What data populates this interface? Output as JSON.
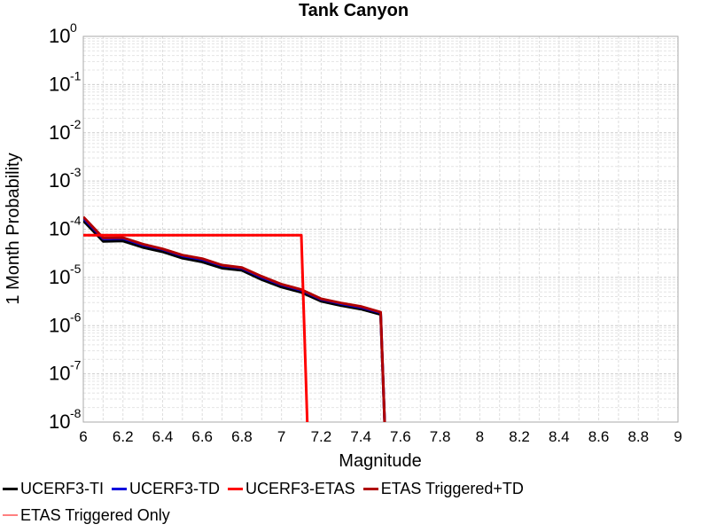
{
  "chart_data": {
    "type": "line",
    "title": "Tank Canyon",
    "xlabel": "Magnitude",
    "ylabel": "1 Month Probability",
    "xlim": [
      6,
      9
    ],
    "ylim": [
      1e-08,
      1
    ],
    "yscale": "log",
    "grid": true,
    "legend_placement": "bottom",
    "x_ticks": [
      "6",
      "6.2",
      "6.4",
      "6.6",
      "6.8",
      "7",
      "7.2",
      "7.4",
      "7.6",
      "7.8",
      "8",
      "8.2",
      "8.4",
      "8.6",
      "8.8",
      "9"
    ],
    "y_ticks": [
      {
        "base": "10",
        "exp": "0"
      },
      {
        "base": "10",
        "exp": "-1"
      },
      {
        "base": "10",
        "exp": "-2"
      },
      {
        "base": "10",
        "exp": "-3"
      },
      {
        "base": "10",
        "exp": "-4"
      },
      {
        "base": "10",
        "exp": "-5"
      },
      {
        "base": "10",
        "exp": "-6"
      },
      {
        "base": "10",
        "exp": "-7"
      },
      {
        "base": "10",
        "exp": "-8"
      }
    ],
    "series": [
      {
        "name": "UCERF3-TI",
        "color": "#000000",
        "width": 3,
        "x": [
          6.0,
          6.1,
          6.2,
          6.3,
          6.4,
          6.5,
          6.6,
          6.7,
          6.8,
          6.9,
          7.0,
          7.1,
          7.2,
          7.3,
          7.4,
          7.5,
          7.52
        ],
        "y": [
          0.00015,
          5.6e-05,
          5.7e-05,
          4.2e-05,
          3.4e-05,
          2.5e-05,
          2.1e-05,
          1.55e-05,
          1.4e-05,
          9e-06,
          6.3e-06,
          4.9e-06,
          3.2e-06,
          2.6e-06,
          2.2e-06,
          1.7e-06,
          1e-08
        ]
      },
      {
        "name": "UCERF3-TD",
        "color": "#0000dd",
        "width": 3,
        "x": [
          6.0,
          6.1,
          6.2,
          6.3,
          6.4,
          6.5,
          6.6,
          6.7,
          6.8,
          6.9,
          7.0,
          7.1,
          7.2,
          7.3,
          7.4,
          7.5,
          7.52
        ],
        "y": [
          0.00017,
          6.3e-05,
          6.4e-05,
          4.7e-05,
          3.8e-05,
          2.8e-05,
          2.35e-05,
          1.75e-05,
          1.55e-05,
          1e-05,
          7e-06,
          5.4e-06,
          3.5e-06,
          2.85e-06,
          2.4e-06,
          1.85e-06,
          1e-08
        ]
      },
      {
        "name": "UCERF3-ETAS",
        "color": "#ff0000",
        "width": 3,
        "x": [
          6.0,
          6.1,
          6.2,
          6.3,
          6.4,
          6.5,
          6.6,
          6.7,
          6.8,
          6.9,
          7.0,
          7.1,
          7.13
        ],
        "y": [
          7.5e-05,
          7.5e-05,
          7.5e-05,
          7.5e-05,
          7.5e-05,
          7.5e-05,
          7.5e-05,
          7.5e-05,
          7.5e-05,
          7.5e-05,
          7.5e-05,
          7.5e-05,
          1e-08
        ]
      },
      {
        "name": "ETAS Triggered+TD",
        "color": "#b00000",
        "width": 3,
        "x": [
          6.0,
          6.1,
          6.2,
          6.3,
          6.4,
          6.5,
          6.6,
          6.7,
          6.8,
          6.9,
          7.0,
          7.1,
          7.2,
          7.3,
          7.4,
          7.5,
          7.52
        ],
        "y": [
          0.00018,
          6.6e-05,
          6.7e-05,
          4.9e-05,
          3.9e-05,
          2.9e-05,
          2.45e-05,
          1.8e-05,
          1.6e-05,
          1.05e-05,
          7.2e-06,
          5.6e-06,
          3.6e-06,
          2.95e-06,
          2.5e-06,
          1.9e-06,
          1e-08
        ]
      },
      {
        "name": "ETAS Triggered Only",
        "color": "#ff8080",
        "width": 2,
        "x": [],
        "y": []
      }
    ]
  }
}
